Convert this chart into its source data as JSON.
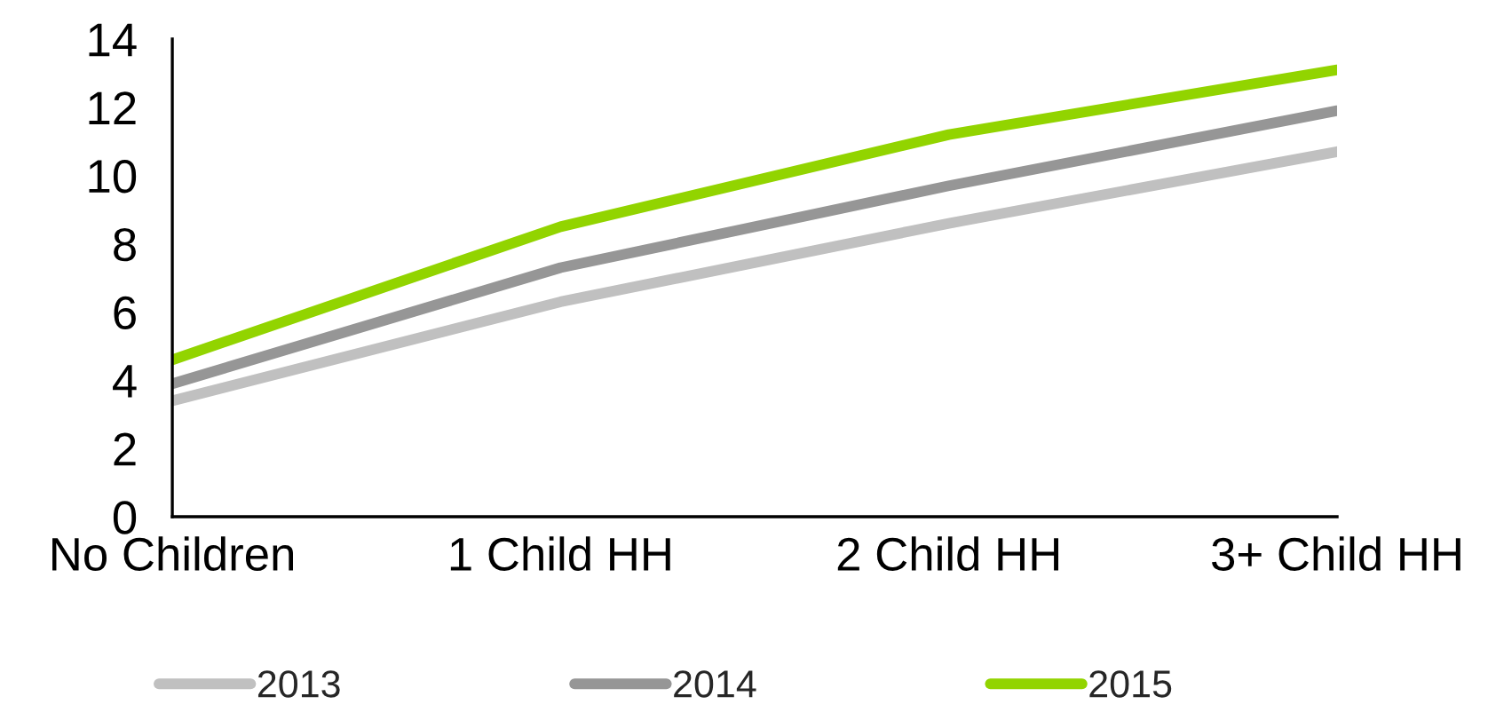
{
  "chart_data": {
    "type": "line",
    "categories": [
      "No Children",
      "1 Child HH",
      "2 Child HH",
      "3+ Child HH"
    ],
    "series": [
      {
        "name": "2013",
        "color": "#c0c0c0",
        "values": [
          3.4,
          6.3,
          8.6,
          10.7
        ]
      },
      {
        "name": "2014",
        "color": "#969696",
        "values": [
          3.9,
          7.3,
          9.7,
          11.9
        ]
      },
      {
        "name": "2015",
        "color": "#92d400",
        "values": [
          4.6,
          8.5,
          11.2,
          13.1
        ]
      }
    ],
    "ylim": [
      0,
      14
    ],
    "yticks": [
      0,
      2,
      4,
      6,
      8,
      10,
      12,
      14
    ],
    "legend": "bottom"
  }
}
